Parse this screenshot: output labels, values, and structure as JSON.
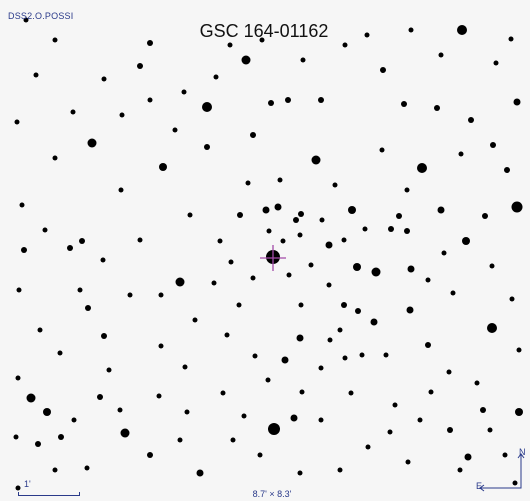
{
  "image": {
    "survey_label": "DSS2.O.POSSI",
    "target_name": "GSC 164-01162",
    "scale_label": "1'",
    "field_of_view": "8.7' × 8.3'",
    "compass_north": "N",
    "compass_east": "E"
  },
  "colors": {
    "background": "#f6f6f6",
    "stars": "#000000",
    "overlay_text": "#2a3a8a",
    "target_marker": "#a24aa8"
  },
  "icons": {
    "target_marker": "crosshair-icon",
    "orientation": "compass-icon"
  }
}
